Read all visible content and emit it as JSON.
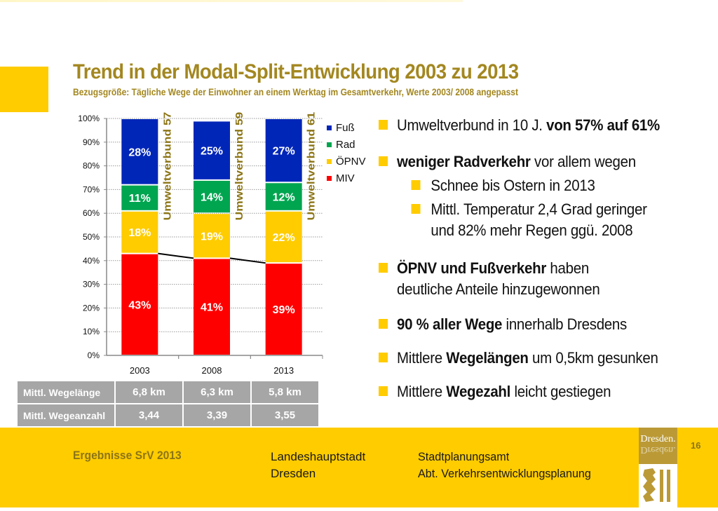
{
  "header": {
    "title": "Trend in der Modal-Split-Entwicklung 2003 zu 2013",
    "subtitle": "Bezugsgröße: Tägliche Wege der Einwohner  an einem Werktag im Gesamtverkehr, Werte 2003/ 2008 angepasst"
  },
  "chart_data": {
    "type": "bar",
    "stacked": true,
    "title": "",
    "xlabel": "",
    "ylabel": "",
    "ylim": [
      0,
      100
    ],
    "y_ticks": [
      "0%",
      "10%",
      "20%",
      "30%",
      "40%",
      "50%",
      "60%",
      "70%",
      "80%",
      "90%",
      "100%"
    ],
    "grid": true,
    "categories": [
      "2003",
      "2008",
      "2013"
    ],
    "series": [
      {
        "name": "MIV",
        "color": "#ff0000",
        "values": [
          43,
          41,
          39
        ],
        "labels": [
          "43%",
          "41%",
          "39%"
        ]
      },
      {
        "name": "ÖPNV",
        "color": "#ffcc00",
        "values": [
          18,
          19,
          22
        ],
        "labels": [
          "18%",
          "19%",
          "22%"
        ]
      },
      {
        "name": "Rad",
        "color": "#00a550",
        "values": [
          11,
          14,
          12
        ],
        "labels": [
          "11%",
          "14%",
          "12%"
        ]
      },
      {
        "name": "Fuß",
        "color": "#0026b8",
        "values": [
          28,
          25,
          27
        ],
        "labels": [
          "28%",
          "25%",
          "27%"
        ]
      }
    ],
    "legend": {
      "placement": "right",
      "order": [
        "Fuß",
        "Rad",
        "ÖPNV",
        "MIV"
      ]
    },
    "annotations": [
      {
        "text": "Umweltverbund 57 %",
        "after_category": "2003"
      },
      {
        "text": "Umweltverbund 59 %",
        "after_category": "2008"
      },
      {
        "text": "Umweltverbund 61 %",
        "after_category": "2013"
      }
    ],
    "trend_line": {
      "series": "MIV",
      "description": "connects tops of MIV segments"
    }
  },
  "table": {
    "rows": [
      {
        "label": "Mittl. Wegelänge",
        "values": [
          "6,8 km",
          "6,3 km",
          "5,8 km"
        ]
      },
      {
        "label": "Mittl. Wegeanzahl",
        "values": [
          "3,44",
          "3,39",
          "3,55"
        ]
      }
    ]
  },
  "bullets": [
    {
      "level": 1,
      "parts": [
        {
          "t": "Umweltverbund in 10 J. ",
          "b": false
        },
        {
          "t": "von 57% auf 61%",
          "b": true
        }
      ]
    },
    {
      "level": 1,
      "parts": [
        {
          "t": "weniger Radverkehr",
          "b": true
        },
        {
          "t": " vor allem wegen",
          "b": false
        }
      ]
    },
    {
      "level": 2,
      "parts": [
        {
          "t": "Schnee bis Ostern in 2013",
          "b": false
        }
      ]
    },
    {
      "level": 2,
      "parts": [
        {
          "t": "Mittl. Temperatur 2,4 Grad geringer",
          "b": false
        }
      ],
      "continuation": "und 82% mehr Regen ggü. 2008"
    },
    {
      "level": 1,
      "parts": [
        {
          "t": "ÖPNV und Fußverkehr",
          "b": true
        },
        {
          "t": " haben",
          "b": false
        }
      ],
      "continuation": "deutliche Anteile hinzugewonnen"
    },
    {
      "level": 1,
      "parts": [
        {
          "t": "90 % aller Wege",
          "b": true
        },
        {
          "t": " innerhalb Dresdens",
          "b": false
        }
      ]
    },
    {
      "level": 1,
      "parts": [
        {
          "t": "Mittlere ",
          "b": false
        },
        {
          "t": "Wegelängen",
          "b": true
        },
        {
          "t": " um 0,5km gesunken",
          "b": false
        }
      ]
    },
    {
      "level": 1,
      "parts": [
        {
          "t": "Mittlere ",
          "b": false
        },
        {
          "t": "Wegezahl",
          "b": true
        },
        {
          "t": " leicht gestiegen",
          "b": false
        }
      ]
    }
  ],
  "footer": {
    "title": "Ergebnisse SrV 2013",
    "city_line1": "Landeshauptstadt",
    "city_line2": "Dresden",
    "office_line1": "Stadtplanungsamt",
    "office_line2": "Abt. Verkehrsentwicklungsplanung",
    "logo_text": "Dresden.",
    "page_number": "16"
  },
  "colors": {
    "accent": "#ffcc00",
    "title": "#a38720",
    "table_bg": "#a6a6a6"
  }
}
